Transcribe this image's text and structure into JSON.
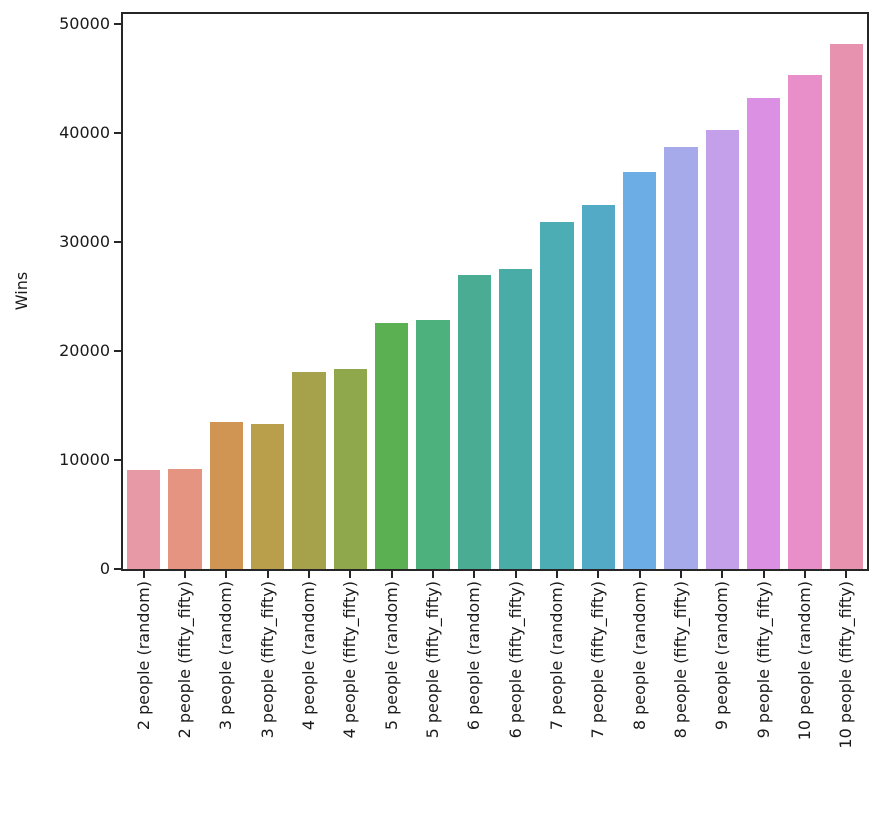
{
  "figure": {
    "background": "#ffffff",
    "spine_color": "#262626",
    "text_color": "#1a1a1a"
  },
  "chart_data": {
    "type": "bar",
    "title": "",
    "xlabel": "",
    "ylabel": "Wins",
    "grid": false,
    "legend": null,
    "ylim": [
      0,
      50900
    ],
    "yticks": [
      0,
      10000,
      20000,
      30000,
      40000,
      50000
    ],
    "categories": [
      "2 people (random)",
      "2 people (fifty_fifty)",
      "3 people (random)",
      "3 people (fifty_fifty)",
      "4 people (random)",
      "4 people (fifty_fifty)",
      "5 people (random)",
      "5 people (fifty_fifty)",
      "6 people (random)",
      "6 people (fifty_fifty)",
      "7 people (random)",
      "7 people (fifty_fifty)",
      "8 people (random)",
      "8 people (fifty_fifty)",
      "9 people (random)",
      "9 people (fifty_fifty)",
      "10 people (random)",
      "10 people (fifty_fifty)"
    ],
    "values": [
      9060,
      9130,
      13510,
      13300,
      18080,
      18300,
      22530,
      22800,
      26930,
      27480,
      31820,
      33350,
      36400,
      38670,
      40260,
      43230,
      45270,
      48170
    ],
    "bar_colors": [
      "#e899a6",
      "#e49480",
      "#d09552",
      "#b99e4b",
      "#a6a24b",
      "#8fa84c",
      "#5bb052",
      "#4cb17d",
      "#4bac94",
      "#4aaca6",
      "#4dadb4",
      "#52aac6",
      "#6bade4",
      "#a6a9ea",
      "#c3a0e9",
      "#dc90e4",
      "#e88fc9",
      "#e793b0"
    ]
  }
}
